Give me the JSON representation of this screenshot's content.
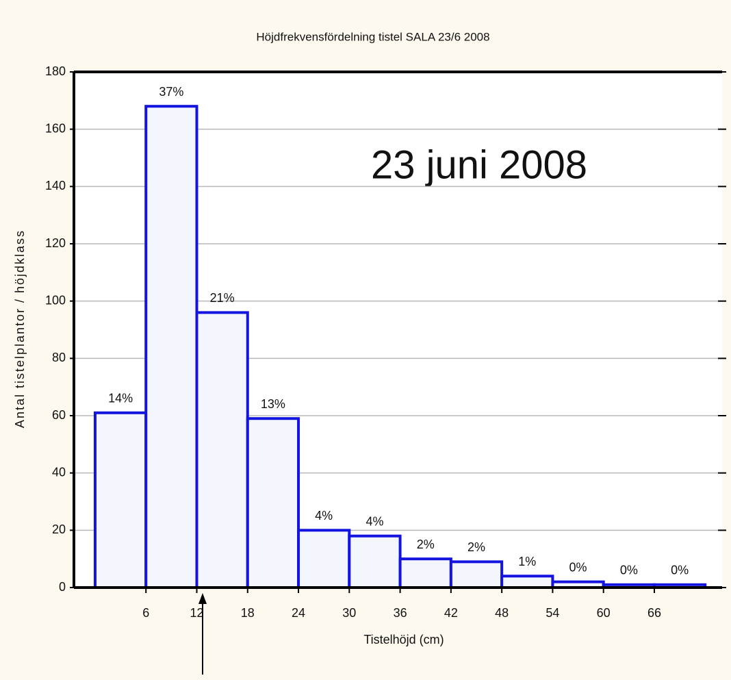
{
  "chart_data": {
    "type": "histogram",
    "title": "Höjdfrekvensfördelning tistel SALA 23/6 2008",
    "annotation": "23 juni 2008",
    "x_label": "Tistelhöjd (cm)",
    "y_label": "Antal tistelplantor / höjdklass",
    "bins": [
      0,
      6,
      12,
      18,
      24,
      30,
      36,
      42,
      48,
      54,
      60,
      66,
      72
    ],
    "values": [
      61,
      168,
      96,
      59,
      20,
      18,
      10,
      9,
      4,
      2,
      1,
      1
    ],
    "bar_labels": [
      "14%",
      "37%",
      "21%",
      "13%",
      "4%",
      "4%",
      "2%",
      "2%",
      "1%",
      "0%",
      "0%",
      "0%"
    ],
    "color": "#1414e0",
    "fill": "#f4f6fd",
    "xlim": [
      -2.5,
      74
    ],
    "xticks": [
      6,
      12,
      18,
      24,
      30,
      36,
      42,
      48,
      54,
      60,
      66
    ],
    "ylim": [
      0,
      180
    ],
    "yticks": [
      0,
      20,
      40,
      60,
      80,
      100,
      120,
      140,
      160,
      180
    ],
    "grid": true
  }
}
